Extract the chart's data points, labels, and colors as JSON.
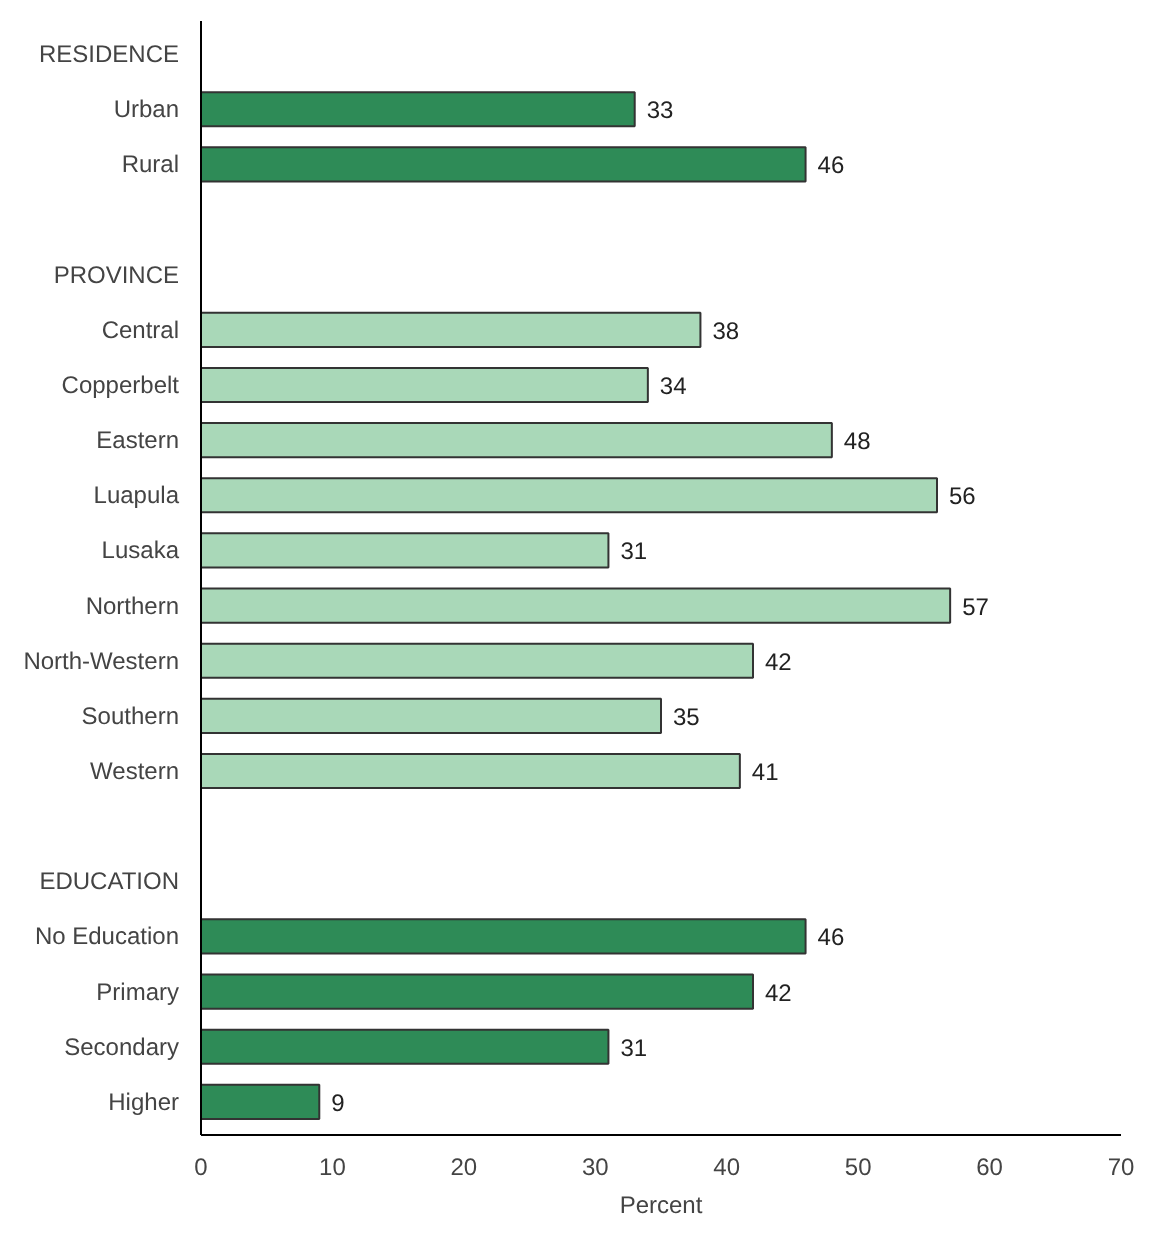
{
  "chart_data": {
    "type": "bar",
    "orientation": "horizontal",
    "xlabel": "Percent",
    "categories": [
      "RESIDENCE",
      "Urban",
      "Rural",
      null,
      "PROVINCE",
      "Central",
      "Copperbelt",
      "Eastern",
      "Luapula",
      "Lusaka",
      "Northern",
      "North-Western",
      "Southern",
      "Western",
      null,
      "EDUCATION",
      "No Education",
      "Primary",
      "Secondary",
      "Higher"
    ],
    "values": [
      null,
      33,
      46,
      null,
      null,
      38,
      34,
      48,
      56,
      31,
      57,
      42,
      35,
      41,
      null,
      null,
      46,
      42,
      31,
      9
    ],
    "colors": [
      null,
      "#2e8b57",
      "#2e8b57",
      null,
      null,
      "#a9d8b8",
      "#a9d8b8",
      "#a9d8b8",
      "#a9d8b8",
      "#a9d8b8",
      "#a9d8b8",
      "#a9d8b8",
      "#a9d8b8",
      "#a9d8b8",
      null,
      null,
      "#2e8b57",
      "#2e8b57",
      "#2e8b57",
      "#2e8b57"
    ],
    "xlim": [
      0,
      70
    ],
    "xticks": [
      0,
      10,
      20,
      30,
      40,
      50,
      60,
      70
    ],
    "data_labels": true
  }
}
